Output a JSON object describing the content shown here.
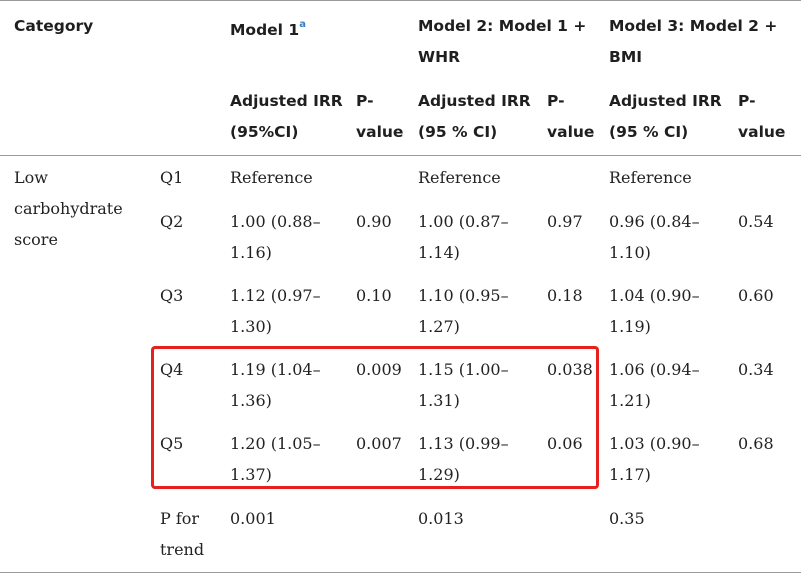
{
  "header": {
    "category": "Category",
    "model1": "Model 1",
    "model1_sup": "a",
    "model2_l1": "Model 2: Model 1 +",
    "model2_l2": "WHR",
    "model3_l1": "Model 3: Model 2 +",
    "model3_l2": "BMI",
    "irr1_l1": "Adjusted IRR",
    "irr1_l2": "(95%CI)",
    "irr2_l1": "Adjusted IRR",
    "irr2_l2": "(95 % CI)",
    "irr3_l1": "Adjusted IRR",
    "irr3_l2": "(95 % CI)",
    "p_l1": "P-",
    "p_l2": "value"
  },
  "category": {
    "l1": "Low",
    "l2": "carbohydrate",
    "l3": "score"
  },
  "rows": [
    {
      "q": "Q1",
      "m1": [
        "Reference",
        ""
      ],
      "p1": "",
      "m2": [
        "Reference",
        ""
      ],
      "p2": "",
      "m3": [
        "Reference",
        ""
      ],
      "p3": ""
    },
    {
      "q": "Q2",
      "m1": [
        "1.00 (0.88–",
        "1.16)"
      ],
      "p1": "0.90",
      "m2": [
        "1.00 (0.87–",
        "1.14)"
      ],
      "p2": "0.97",
      "m3": [
        "0.96 (0.84–",
        "1.10)"
      ],
      "p3": "0.54"
    },
    {
      "q": "Q3",
      "m1": [
        "1.12 (0.97–",
        "1.30)"
      ],
      "p1": "0.10",
      "m2": [
        "1.10 (0.95–",
        "1.27)"
      ],
      "p2": "0.18",
      "m3": [
        "1.04 (0.90–",
        "1.19)"
      ],
      "p3": "0.60"
    },
    {
      "q": "Q4",
      "m1": [
        "1.19 (1.04–",
        "1.36)"
      ],
      "p1": "0.009",
      "m2": [
        "1.15 (1.00–",
        "1.31)"
      ],
      "p2": "0.038",
      "m3": [
        "1.06 (0.94–",
        "1.21)"
      ],
      "p3": "0.34"
    },
    {
      "q": "Q5",
      "m1": [
        "1.20 (1.05–",
        "1.37)"
      ],
      "p1": "0.007",
      "m2": [
        "1.13 (0.99–",
        "1.29)"
      ],
      "p2": "0.06",
      "m3": [
        "1.03 (0.90–",
        "1.17)"
      ],
      "p3": "0.68"
    }
  ],
  "trend": {
    "label_l1": "P for",
    "label_l2": "trend",
    "m1": "0.001",
    "m2": "0.013",
    "m3": "0.35"
  },
  "highlight_color": "#e8201d"
}
